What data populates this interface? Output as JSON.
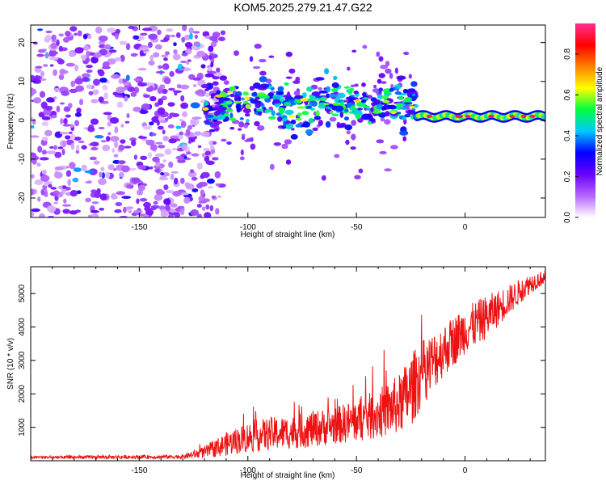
{
  "title": "KOM5.2025.279.21.47.G22",
  "chart_data": [
    {
      "type": "heatmap",
      "title": "KOM5.2025.279.21.47.G22",
      "xlabel": "Height of straight line (km)",
      "ylabel": "Frequency (Hz)",
      "xlim": [
        -200,
        37
      ],
      "ylim": [
        -25,
        24.5
      ],
      "xticks": [
        -150,
        -100,
        -50,
        0
      ],
      "yticks": [
        -20,
        -10,
        0,
        10,
        20
      ],
      "colorbar": {
        "label": "Normalized spectral amplitude",
        "range": [
          0,
          0.95
        ],
        "ticks": [
          0.0,
          0.2,
          0.4,
          0.6,
          0.8
        ],
        "colormap": [
          "#ffffff",
          "#b566ff",
          "#6a00ff",
          "#0000ff",
          "#00c8ff",
          "#00ff40",
          "#ffff00",
          "#ff8000",
          "#ff0000",
          "#ff3090"
        ]
      },
      "regions": [
        {
          "x_range": [
            -200,
            -120
          ],
          "freq_range": [
            -25,
            24
          ],
          "amplitude": 0.1,
          "description": "diffuse noise"
        },
        {
          "x_range": [
            -120,
            -22
          ],
          "freq_center": 4,
          "freq_spread": 5,
          "amplitude": 0.4,
          "description": "scattered signal band"
        },
        {
          "x_range": [
            -22,
            37
          ],
          "freq_center": 1,
          "freq_spread": 0.8,
          "amplitude": 0.9,
          "description": "coherent narrow line"
        }
      ]
    },
    {
      "type": "line",
      "xlabel": "Height of straight line (km)",
      "ylabel": "SNR (10 * v/v)",
      "xlim": [
        -200,
        37
      ],
      "ylim": [
        0,
        5800
      ],
      "xticks": [
        -150,
        -100,
        -50,
        0
      ],
      "yticks": [
        1000,
        2000,
        3000,
        4000,
        5000
      ],
      "color": "#ee1111",
      "envelope": {
        "x": [
          -200,
          -130,
          -120,
          -110,
          -100,
          -90,
          -80,
          -70,
          -60,
          -50,
          -40,
          -30,
          -25,
          -20,
          -10,
          0,
          10,
          20,
          30,
          37
        ],
        "mean": [
          100,
          120,
          250,
          500,
          700,
          800,
          850,
          950,
          1050,
          1200,
          1400,
          1700,
          2100,
          2600,
          3300,
          3900,
          4300,
          4800,
          5300,
          5500
        ],
        "noise": [
          40,
          60,
          180,
          350,
          450,
          500,
          500,
          550,
          550,
          650,
          750,
          900,
          1100,
          1000,
          800,
          700,
          650,
          450,
          300,
          200
        ]
      }
    }
  ]
}
